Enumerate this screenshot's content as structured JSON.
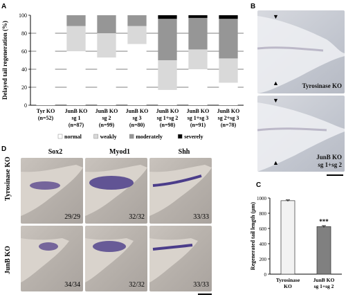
{
  "panels": {
    "a": "A",
    "b": "B",
    "c": "C",
    "d": "D"
  },
  "chart_data": [
    {
      "type": "bar",
      "stacked": true,
      "ylabel": "Delayed tail regeneration (%)",
      "ylim": [
        0,
        100
      ],
      "yticks": [
        0,
        20,
        40,
        60,
        80,
        100
      ],
      "categories": [
        [
          "Tyr KO",
          "(n=52)"
        ],
        [
          "JunB KO",
          "sg 1",
          "(n=87)"
        ],
        [
          "JunB KO",
          "sg 2",
          "(n=99)"
        ],
        [
          "JunB KO",
          "sg 3",
          "(n=80)"
        ],
        [
          "JunB KO",
          "sg 1+sg 2",
          "(n=98)"
        ],
        [
          "JunB KO",
          "sg 1+sg 3",
          "(n=91)"
        ],
        [
          "JunB KO",
          "sg 2+sg 3",
          "(n=78)"
        ]
      ],
      "series": [
        {
          "name": "normal",
          "color": "#ffffff",
          "values": [
            100,
            60,
            53,
            68,
            17,
            40,
            25
          ]
        },
        {
          "name": "weakly",
          "color": "#d9d9d9",
          "values": [
            0,
            28,
            27,
            20,
            33,
            22,
            27
          ]
        },
        {
          "name": "moderately",
          "color": "#969696",
          "values": [
            0,
            12,
            20,
            12,
            46,
            35,
            44
          ]
        },
        {
          "name": "severely",
          "color": "#000000",
          "values": [
            0,
            0,
            0,
            0,
            4,
            3,
            4
          ]
        }
      ],
      "legend_position": "bottom"
    },
    {
      "type": "bar",
      "ylabel": "Regenerated tail length (µm)",
      "ylim": [
        0,
        1000
      ],
      "yticks": [
        0,
        200,
        400,
        600,
        800,
        1000
      ],
      "categories": [
        [
          "Tyrosinase",
          "KO"
        ],
        [
          "JunB KO",
          "sg 1+sg 2"
        ]
      ],
      "values": [
        965,
        625
      ],
      "errors": [
        10,
        12
      ],
      "colors": [
        "#f2f2f2",
        "#808080"
      ],
      "annotation": "***"
    }
  ],
  "panel_b": {
    "top_caption": "Tyrosinase KO",
    "bottom_caption_1": "JunB KO",
    "bottom_caption_2": "sg 1+sg 2"
  },
  "panel_d": {
    "genes": [
      "Sox2",
      "Myod1",
      "Shh"
    ],
    "rows": [
      "Tyrosinase KO",
      "JunB KO"
    ],
    "counts": [
      [
        "29/29",
        "32/32",
        "33/33"
      ],
      [
        "34/34",
        "32/32",
        "33/33"
      ]
    ]
  }
}
